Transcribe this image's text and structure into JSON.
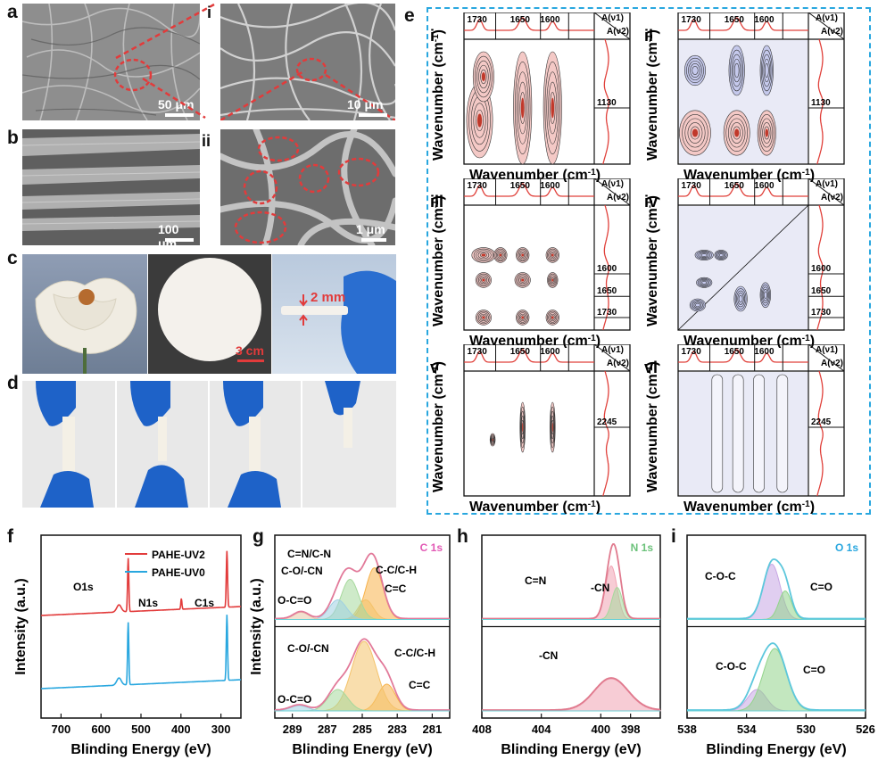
{
  "panels": {
    "a": "a",
    "b": "b",
    "c": "c",
    "d": "d",
    "e": "e",
    "f": "f",
    "g": "g",
    "h": "h",
    "i": "i",
    "sub_i": "i",
    "sub_ii": "ii"
  },
  "sem": {
    "a_scale": "50 μm",
    "ai_scale": "10 μm",
    "b_scale": "100 μm",
    "bii_scale": "1 μm"
  },
  "photos": {
    "thickness": "2 mm",
    "scale": "3 cm"
  },
  "colors": {
    "red": "#e23b3b",
    "blue": "#29a7df",
    "ir_line": "#e0403a",
    "pos_contour": "#f4c9c6",
    "neg_contour": "#c5c9ec"
  },
  "panel_e": {
    "subpanels": [
      {
        "label": "i",
        "top_ticks": [
          "1730",
          "1650",
          "1600"
        ],
        "side_ticks": [
          "1130"
        ]
      },
      {
        "label": "ii",
        "top_ticks": [
          "1730",
          "1650",
          "1600"
        ],
        "side_ticks": [
          "1130"
        ]
      },
      {
        "label": "iii",
        "top_ticks": [
          "1730",
          "1650",
          "1600"
        ],
        "side_ticks": [
          "1600",
          "1650",
          "1730"
        ]
      },
      {
        "label": "iv",
        "top_ticks": [
          "1730",
          "1650",
          "1600"
        ],
        "side_ticks": [
          "1600",
          "1650",
          "1730"
        ]
      },
      {
        "label": "v",
        "top_ticks": [
          "1730",
          "1650",
          "1600"
        ],
        "side_ticks": [
          "2245"
        ]
      },
      {
        "label": "vi",
        "top_ticks": [
          "1730",
          "1650",
          "1600"
        ],
        "side_ticks": [
          "2245"
        ]
      }
    ],
    "corner1": "A(ν",
    "corner1_sub": "1",
    "corner2": "A(ν",
    "corner2_sub": "2",
    "close_paren": ")",
    "xlabel": "Wavenumber (cm",
    "ylabel": "Wavenumber (cm",
    "unit_sup": "-1",
    "unit_close": ")"
  },
  "chart_data": [
    {
      "type": "line",
      "panel": "f",
      "xlabel": "Blinding Energy (eV)",
      "ylabel": "Intensity (a.u.)",
      "x_ticks": [
        "700",
        "600",
        "500",
        "400",
        "300"
      ],
      "xlim": [
        750,
        250
      ],
      "legend": [
        "PAHE-UV2",
        "PAHE-UV0"
      ],
      "legend_position": "top-right",
      "annotations": [
        "O1s",
        "N1s",
        "C1s"
      ],
      "series": [
        {
          "name": "PAHE-UV2",
          "color": "#e23b3b",
          "peaks": [
            {
              "x": 532,
              "height": 0.9
            },
            {
              "x": 399,
              "height": 0.12
            },
            {
              "x": 285,
              "height": 1.0
            }
          ]
        },
        {
          "name": "PAHE-UV0",
          "color": "#29a7df",
          "peaks": [
            {
              "x": 532,
              "height": 0.95
            },
            {
              "x": 285,
              "height": 1.0
            }
          ]
        }
      ]
    },
    {
      "type": "line",
      "panel": "g",
      "element": "C 1s",
      "xlabel": "Blinding Energy (eV)",
      "ylabel": "Intensity (a.u.)",
      "x_ticks": [
        "289",
        "287",
        "285",
        "283",
        "281"
      ],
      "xlim": [
        290,
        280
      ],
      "top": {
        "annotations": [
          "C=N/C-N",
          "C-O/-CN",
          "C-C/C-H",
          "C=C",
          "O-C=O"
        ],
        "components": [
          {
            "center": 284.3,
            "label": "C=C"
          },
          {
            "center": 284.8,
            "label": "C-C/C-H"
          },
          {
            "center": 285.7,
            "label": "C=N/C-N"
          },
          {
            "center": 286.4,
            "label": "C-O/-CN"
          },
          {
            "center": 288.5,
            "label": "O-C=O"
          }
        ]
      },
      "bottom": {
        "annotations": [
          "C-O/-CN",
          "C-C/C-H",
          "C=C",
          "O-C=O"
        ],
        "components": [
          {
            "center": 283.6,
            "label": "C=C"
          },
          {
            "center": 284.9,
            "label": "C-C/C-H"
          },
          {
            "center": 286.4,
            "label": "C-O/-CN"
          },
          {
            "center": 288.6,
            "label": "O-C=O"
          }
        ]
      }
    },
    {
      "type": "line",
      "panel": "h",
      "element": "N 1s",
      "xlabel": "Blinding Energy (eV)",
      "x_ticks": [
        "408",
        "404",
        "400",
        "398"
      ],
      "xlim": [
        408,
        396
      ],
      "top": {
        "annotations": [
          "C=N",
          "-CN"
        ],
        "components": [
          {
            "center": 399.3,
            "label": "C=N"
          },
          {
            "center": 398.9,
            "label": "-CN"
          }
        ]
      },
      "bottom": {
        "annotations": [
          "-CN"
        ],
        "components": [
          {
            "center": 399.3,
            "label": "-CN"
          }
        ]
      }
    },
    {
      "type": "line",
      "panel": "i",
      "element": "O 1s",
      "xlabel": "Blinding Energy (eV)",
      "x_ticks": [
        "538",
        "534",
        "530",
        "526"
      ],
      "xlim": [
        538,
        526
      ],
      "top": {
        "annotations": [
          "C-O-C",
          "C=O"
        ],
        "components": [
          {
            "center": 532.3,
            "label": "C-O-C"
          },
          {
            "center": 531.4,
            "label": "C=O"
          }
        ]
      },
      "bottom": {
        "annotations": [
          "C-O-C",
          "C=O"
        ],
        "components": [
          {
            "center": 533.3,
            "label": "C-O-C"
          },
          {
            "center": 532.1,
            "label": "C=O"
          }
        ]
      }
    }
  ]
}
